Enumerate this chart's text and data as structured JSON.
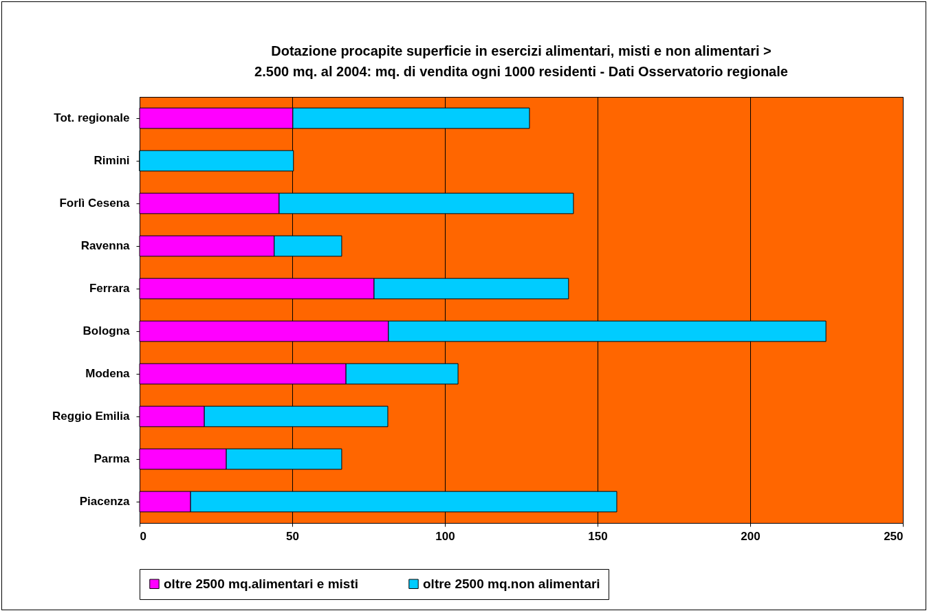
{
  "chart_data": {
    "type": "bar",
    "orientation": "horizontal",
    "stacked": true,
    "title": "Dotazione procapite superficie in esercizi alimentari, misti e non alimentari > 2.500 mq. al 2004: mq. di vendita ogni 1000 residenti - Dati Osservatorio regionale",
    "categories": [
      "Tot. regionale",
      "Rimini",
      "Forlì Cesena",
      "Ravenna",
      "Ferrara",
      "Bologna",
      "Modena",
      "Reggio Emilia",
      "Parma",
      "Piacenza"
    ],
    "series": [
      {
        "name": "oltre 2500 mq.alimentari e misti",
        "color": "#ff00ff",
        "values": [
          50.2,
          0,
          45.7,
          44.1,
          76.8,
          81.5,
          67.6,
          21.2,
          28.4,
          16.7
        ]
      },
      {
        "name": "oltre 2500 mq.non alimentari",
        "color": "#00ccff",
        "values": [
          77.5,
          50.4,
          96.4,
          22.1,
          63.7,
          143.3,
          36.7,
          60.1,
          37.8,
          139.6
        ]
      }
    ],
    "xlim": [
      0,
      250
    ],
    "xticks": [
      0,
      50,
      100,
      150,
      200,
      250
    ],
    "grid": "x",
    "legend": "bottom"
  }
}
